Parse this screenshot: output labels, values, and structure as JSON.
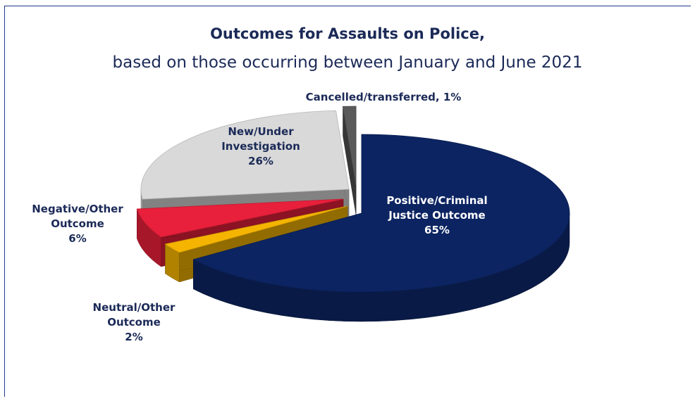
{
  "chart_data": {
    "type": "pie",
    "title": "Outcomes for Assaults on Police,",
    "subtitle": "based on those occurring between January and June 2021",
    "slices": [
      {
        "label": "Positive/Criminal Justice Outcome",
        "label_lines": [
          "Positive/Criminal",
          "Justice Outcome"
        ],
        "pct_text": "65%",
        "value": 65,
        "color": "#0c2461",
        "label_color": "#ffffff"
      },
      {
        "label": "Neutral/Other Outcome",
        "label_lines": [
          "Neutral/Other",
          "Outcome"
        ],
        "pct_text": "2%",
        "value": 2,
        "color": "#f4b400",
        "label_color": "#1b2a57"
      },
      {
        "label": "Negative/Other Outcome",
        "label_lines": [
          "Negative/Other",
          "Outcome"
        ],
        "pct_text": "6%",
        "value": 6,
        "color": "#e8203b",
        "label_color": "#1b2a57"
      },
      {
        "label": "New/Under Investigation",
        "label_lines": [
          "New/Under",
          "Investigation"
        ],
        "pct_text": "26%",
        "value": 26,
        "color": "#d9d9d9",
        "label_color": "#1b2a57"
      },
      {
        "label": "Cancelled/transferred",
        "label_lines": [
          "Cancelled/transferred, 1%"
        ],
        "pct_text": "",
        "value": 1,
        "color": "#5a5a5a",
        "label_color": "#1b2a57"
      }
    ]
  }
}
